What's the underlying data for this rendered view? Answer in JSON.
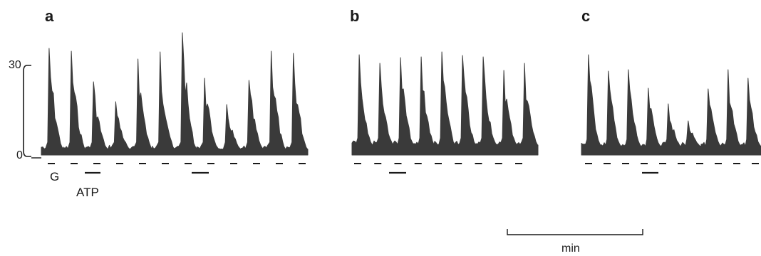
{
  "panels": [
    {
      "label": "a",
      "traces": 12,
      "glucose_pulses": 12,
      "atp_bars": 2
    },
    {
      "label": "b",
      "traces": 9,
      "glucose_pulses": 9,
      "atp_bars": 1
    },
    {
      "label": "c",
      "traces": 10,
      "glucose_pulses": 10,
      "atp_bars": 1
    }
  ],
  "y_axis": {
    "ticks": [
      "30",
      "0"
    ]
  },
  "stimulus_labels": {
    "glucose": "G",
    "atp": "ATP"
  },
  "time_scale": {
    "label": "min"
  },
  "colors": {
    "trace": "#3a3a3a",
    "ink": "#1a1a1a",
    "background": "#ffffff"
  }
}
